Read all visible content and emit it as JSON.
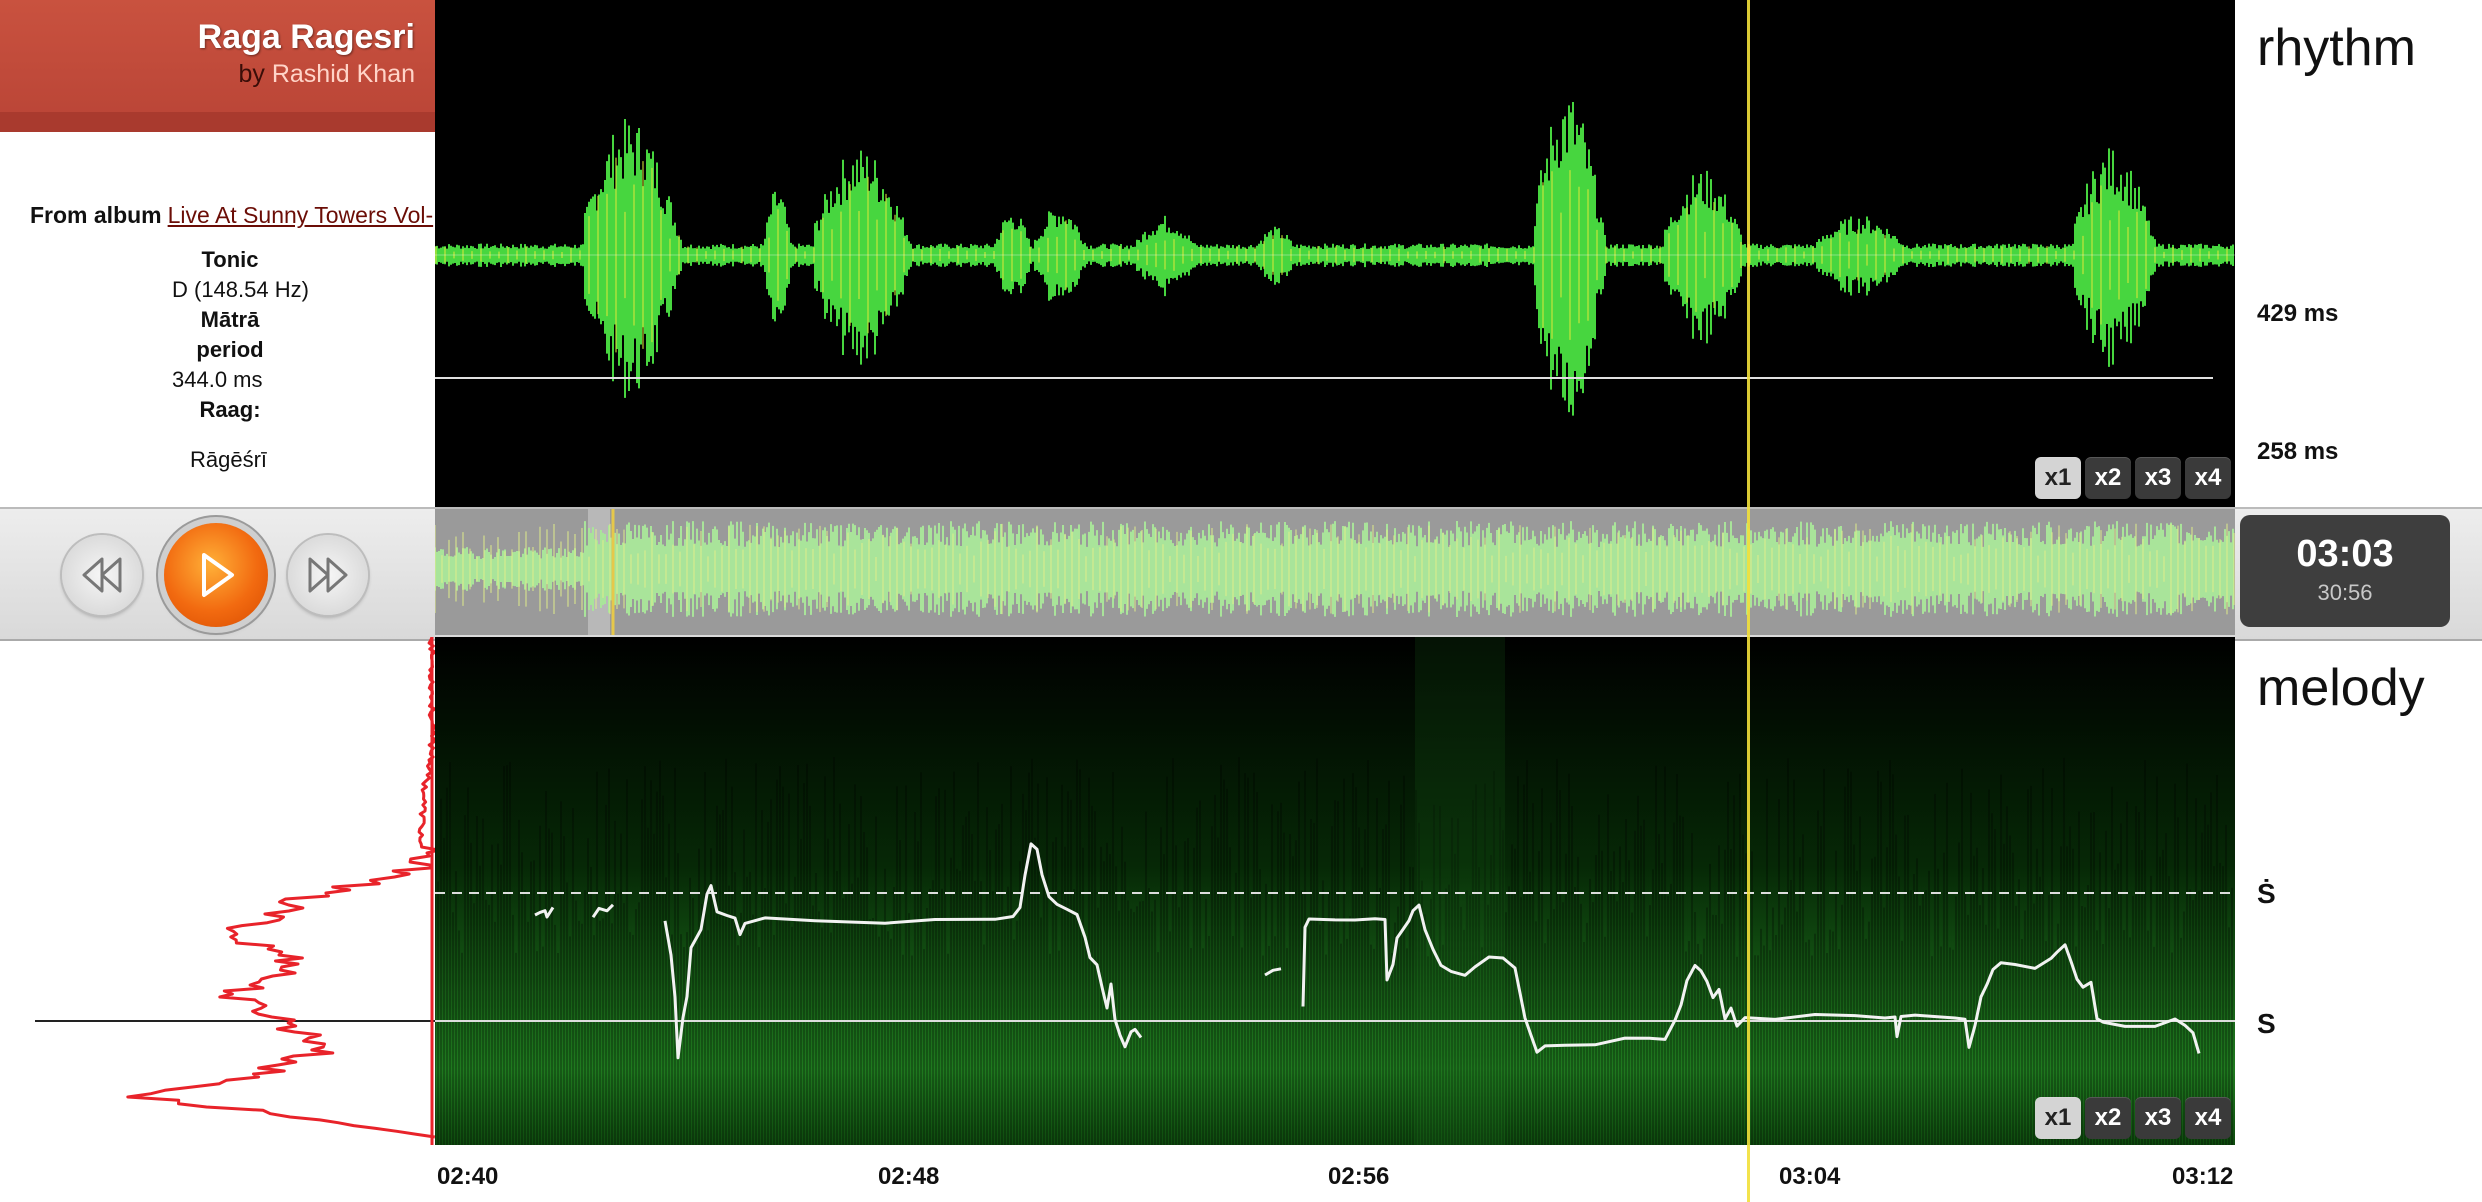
{
  "track": {
    "title": "Raga Ragesri",
    "by_prefix": "by ",
    "artist": "Rashid Khan"
  },
  "info": {
    "album_label": "From album",
    "album_link": "Live At Sunny Towers Vol-",
    "tonic_label": "Tonic",
    "tonic_value": "D (148.54 Hz)",
    "matra_label_1": "Mātrā",
    "matra_label_2": "period",
    "matra_value": "344.0 ms",
    "raag_label": "Raag:",
    "raag_value": "Rāgēśrī"
  },
  "rhythm": {
    "title": "rhythm",
    "label_1": "429 ms",
    "label_2": "258 ms"
  },
  "melody": {
    "title": "melody",
    "swara_upper": "Ṡ",
    "swara_lower": "S"
  },
  "zoom_levels": [
    "x1",
    "x2",
    "x3",
    "x4"
  ],
  "playback": {
    "current": "03:03",
    "total": "30:56",
    "state": "paused"
  },
  "timeline": {
    "ticks": [
      "02:40",
      "02:48",
      "02:56",
      "03:04",
      "03:12"
    ]
  },
  "colors": {
    "header": "#c24b3b",
    "waveform": "#4ee05a",
    "pitch": "#ffffff",
    "histogram": "#e8232a",
    "playhead": "#f2e03a",
    "accent": "#f26a10"
  },
  "icons": {
    "rewind": "rewind-icon",
    "play": "play-icon",
    "forward": "fast-forward-icon"
  }
}
